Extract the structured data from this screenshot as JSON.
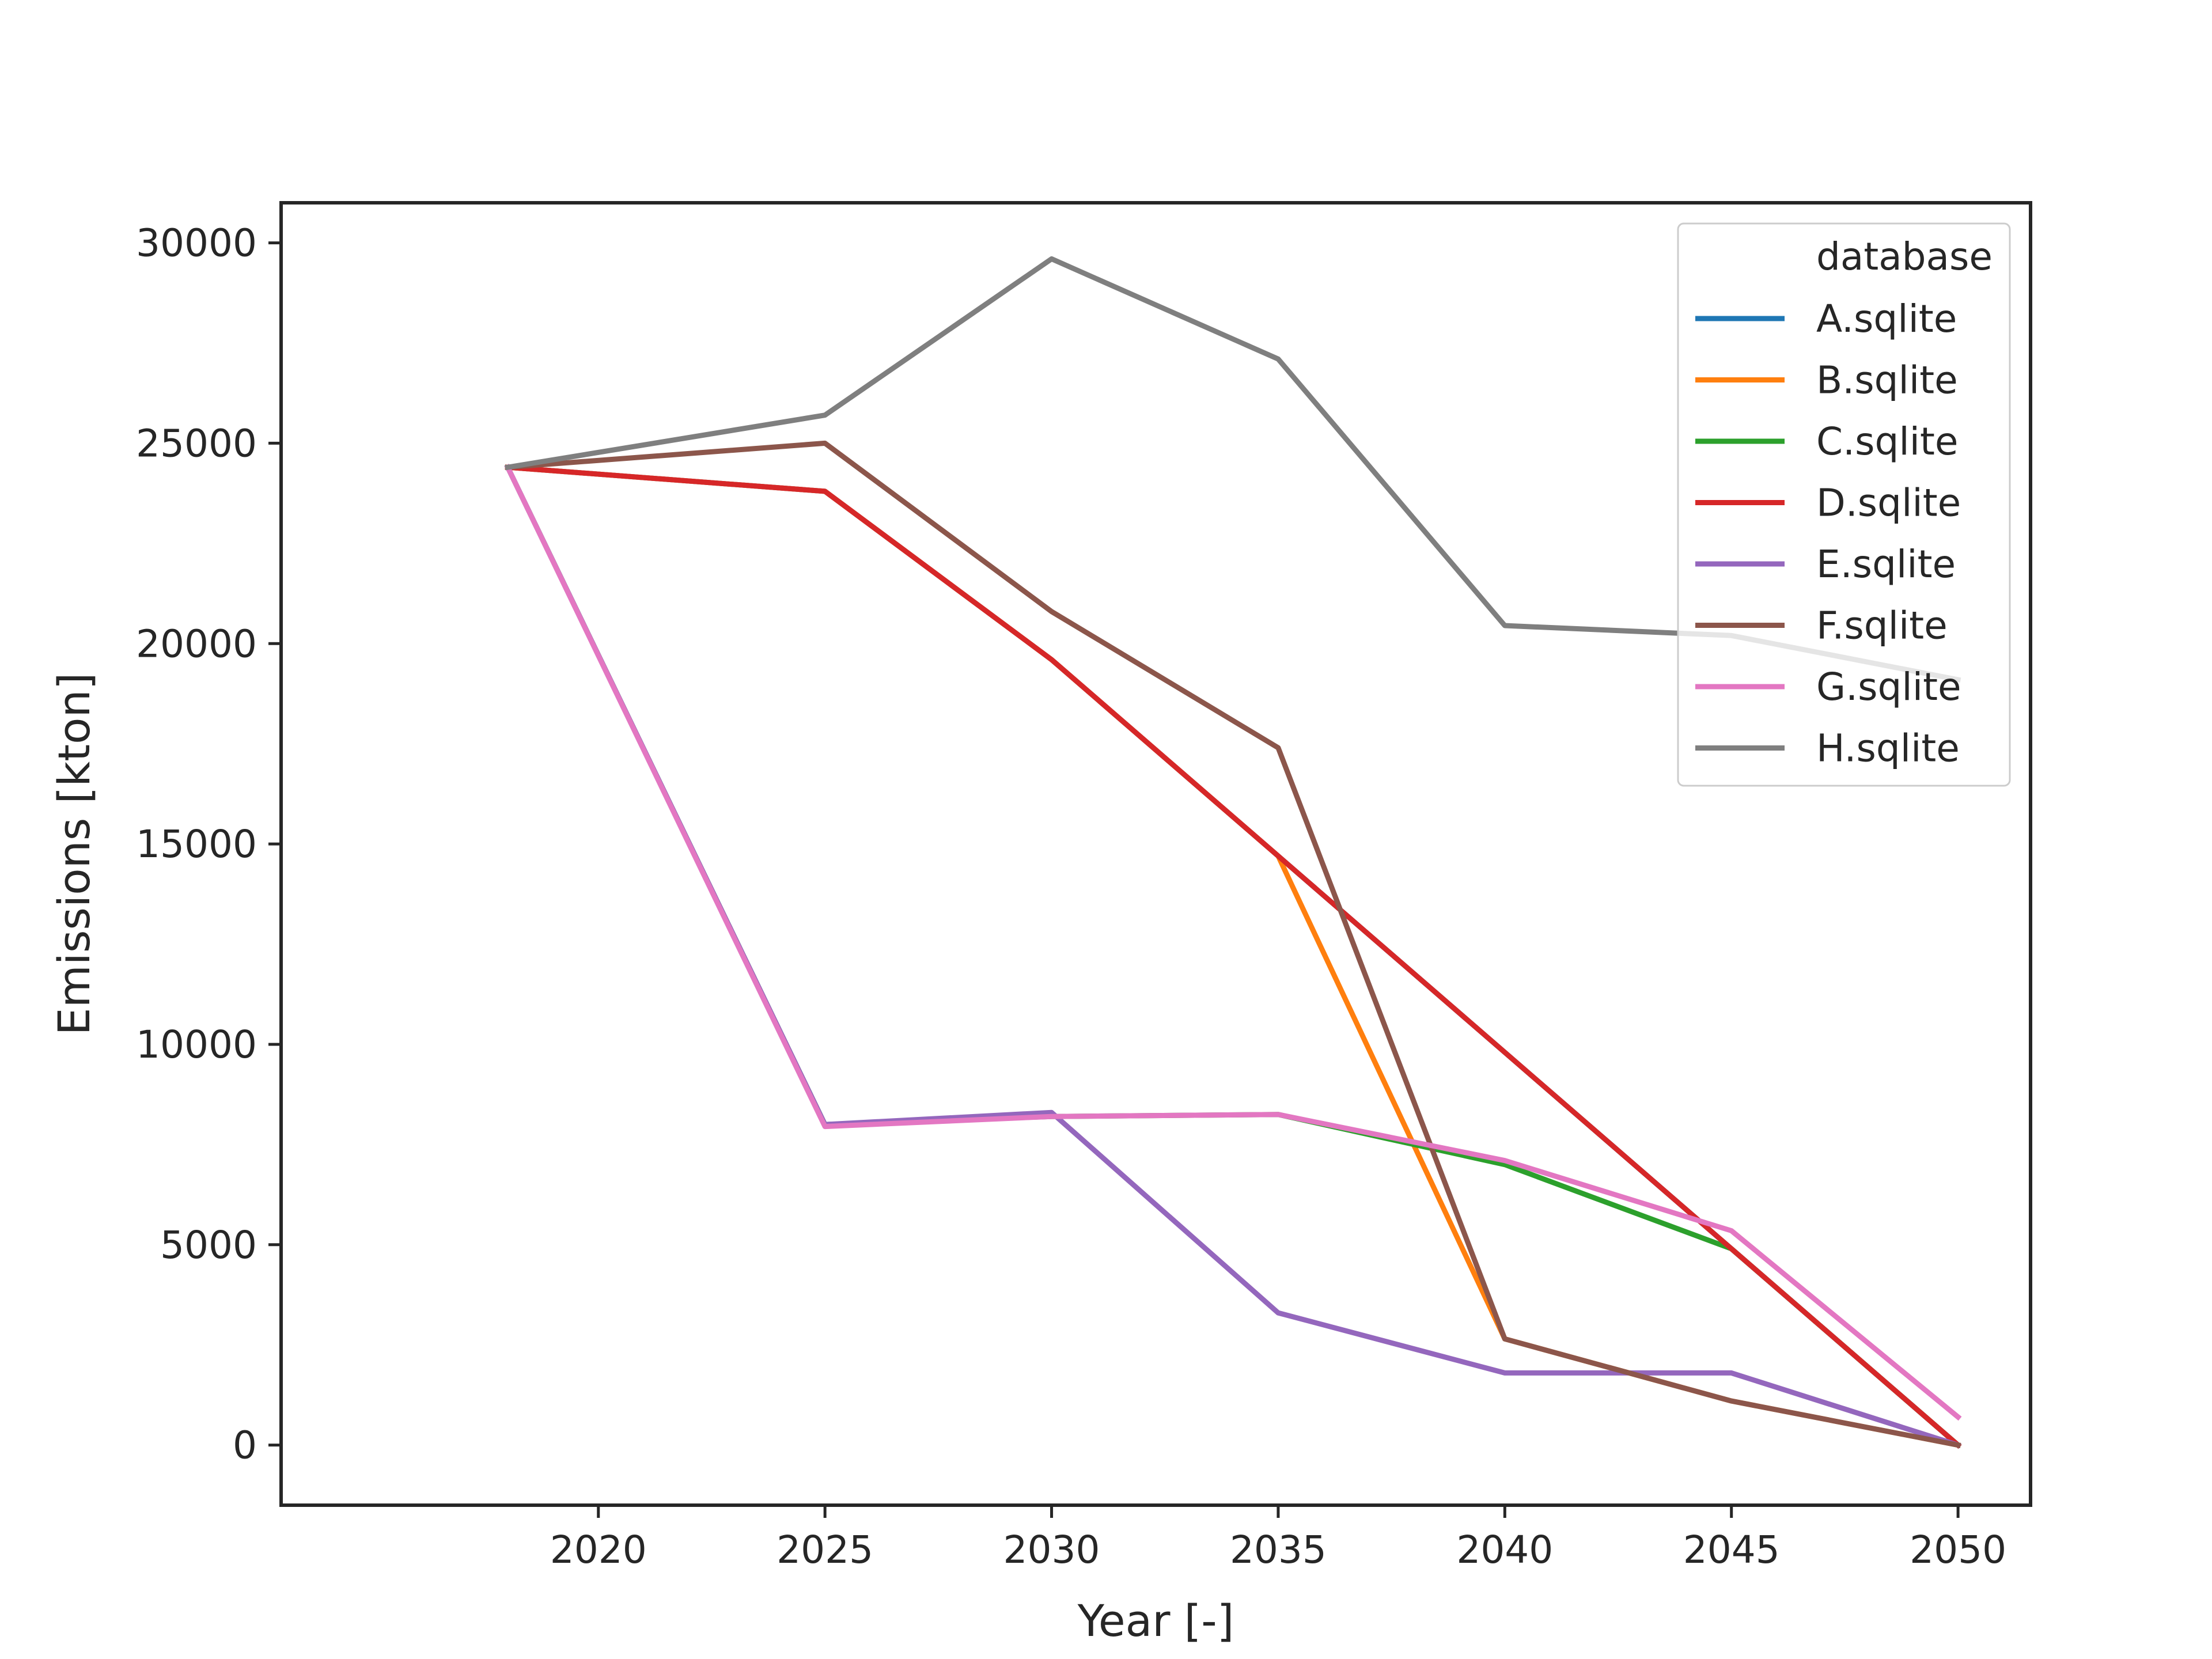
{
  "chart_data": {
    "type": "line",
    "xlabel": "Year [-]",
    "ylabel": "Emissions [kton]",
    "x": [
      2018,
      2025,
      2030,
      2035,
      2040,
      2045,
      2050
    ],
    "xlim": [
      2013,
      2051.6
    ],
    "ylim": [
      -1500,
      31000
    ],
    "xticks": [
      2020,
      2025,
      2030,
      2035,
      2040,
      2045,
      2050
    ],
    "yticks": [
      0,
      5000,
      10000,
      15000,
      20000,
      25000,
      30000
    ],
    "grid": false,
    "legend": {
      "title": "database",
      "placement": "top-right"
    },
    "series": [
      {
        "name": "A.sqlite",
        "color": "#1f77b4",
        "values": [
          24400,
          23800,
          19600,
          14700,
          9800,
          4900,
          0
        ]
      },
      {
        "name": "B.sqlite",
        "color": "#ff7f0e",
        "values": [
          24400,
          23800,
          19600,
          14700,
          2650,
          1100,
          0
        ]
      },
      {
        "name": "C.sqlite",
        "color": "#2ca02c",
        "values": [
          24400,
          8000,
          8200,
          8250,
          7000,
          4900,
          0
        ]
      },
      {
        "name": "D.sqlite",
        "color": "#d62728",
        "values": [
          24400,
          23800,
          19600,
          14700,
          9800,
          4900,
          0
        ]
      },
      {
        "name": "E.sqlite",
        "color": "#9467bd",
        "values": [
          24400,
          8000,
          8300,
          3300,
          1800,
          1800,
          0
        ]
      },
      {
        "name": "F.sqlite",
        "color": "#8c564b",
        "values": [
          24400,
          25000,
          20800,
          17400,
          2650,
          1100,
          0
        ]
      },
      {
        "name": "G.sqlite",
        "color": "#e377c2",
        "values": [
          24400,
          7950,
          8200,
          8250,
          7100,
          5350,
          700
        ]
      },
      {
        "name": "H.sqlite",
        "color": "#7f7f7f",
        "values": [
          24400,
          25700,
          29600,
          27100,
          20450,
          20200,
          19100
        ]
      }
    ]
  }
}
